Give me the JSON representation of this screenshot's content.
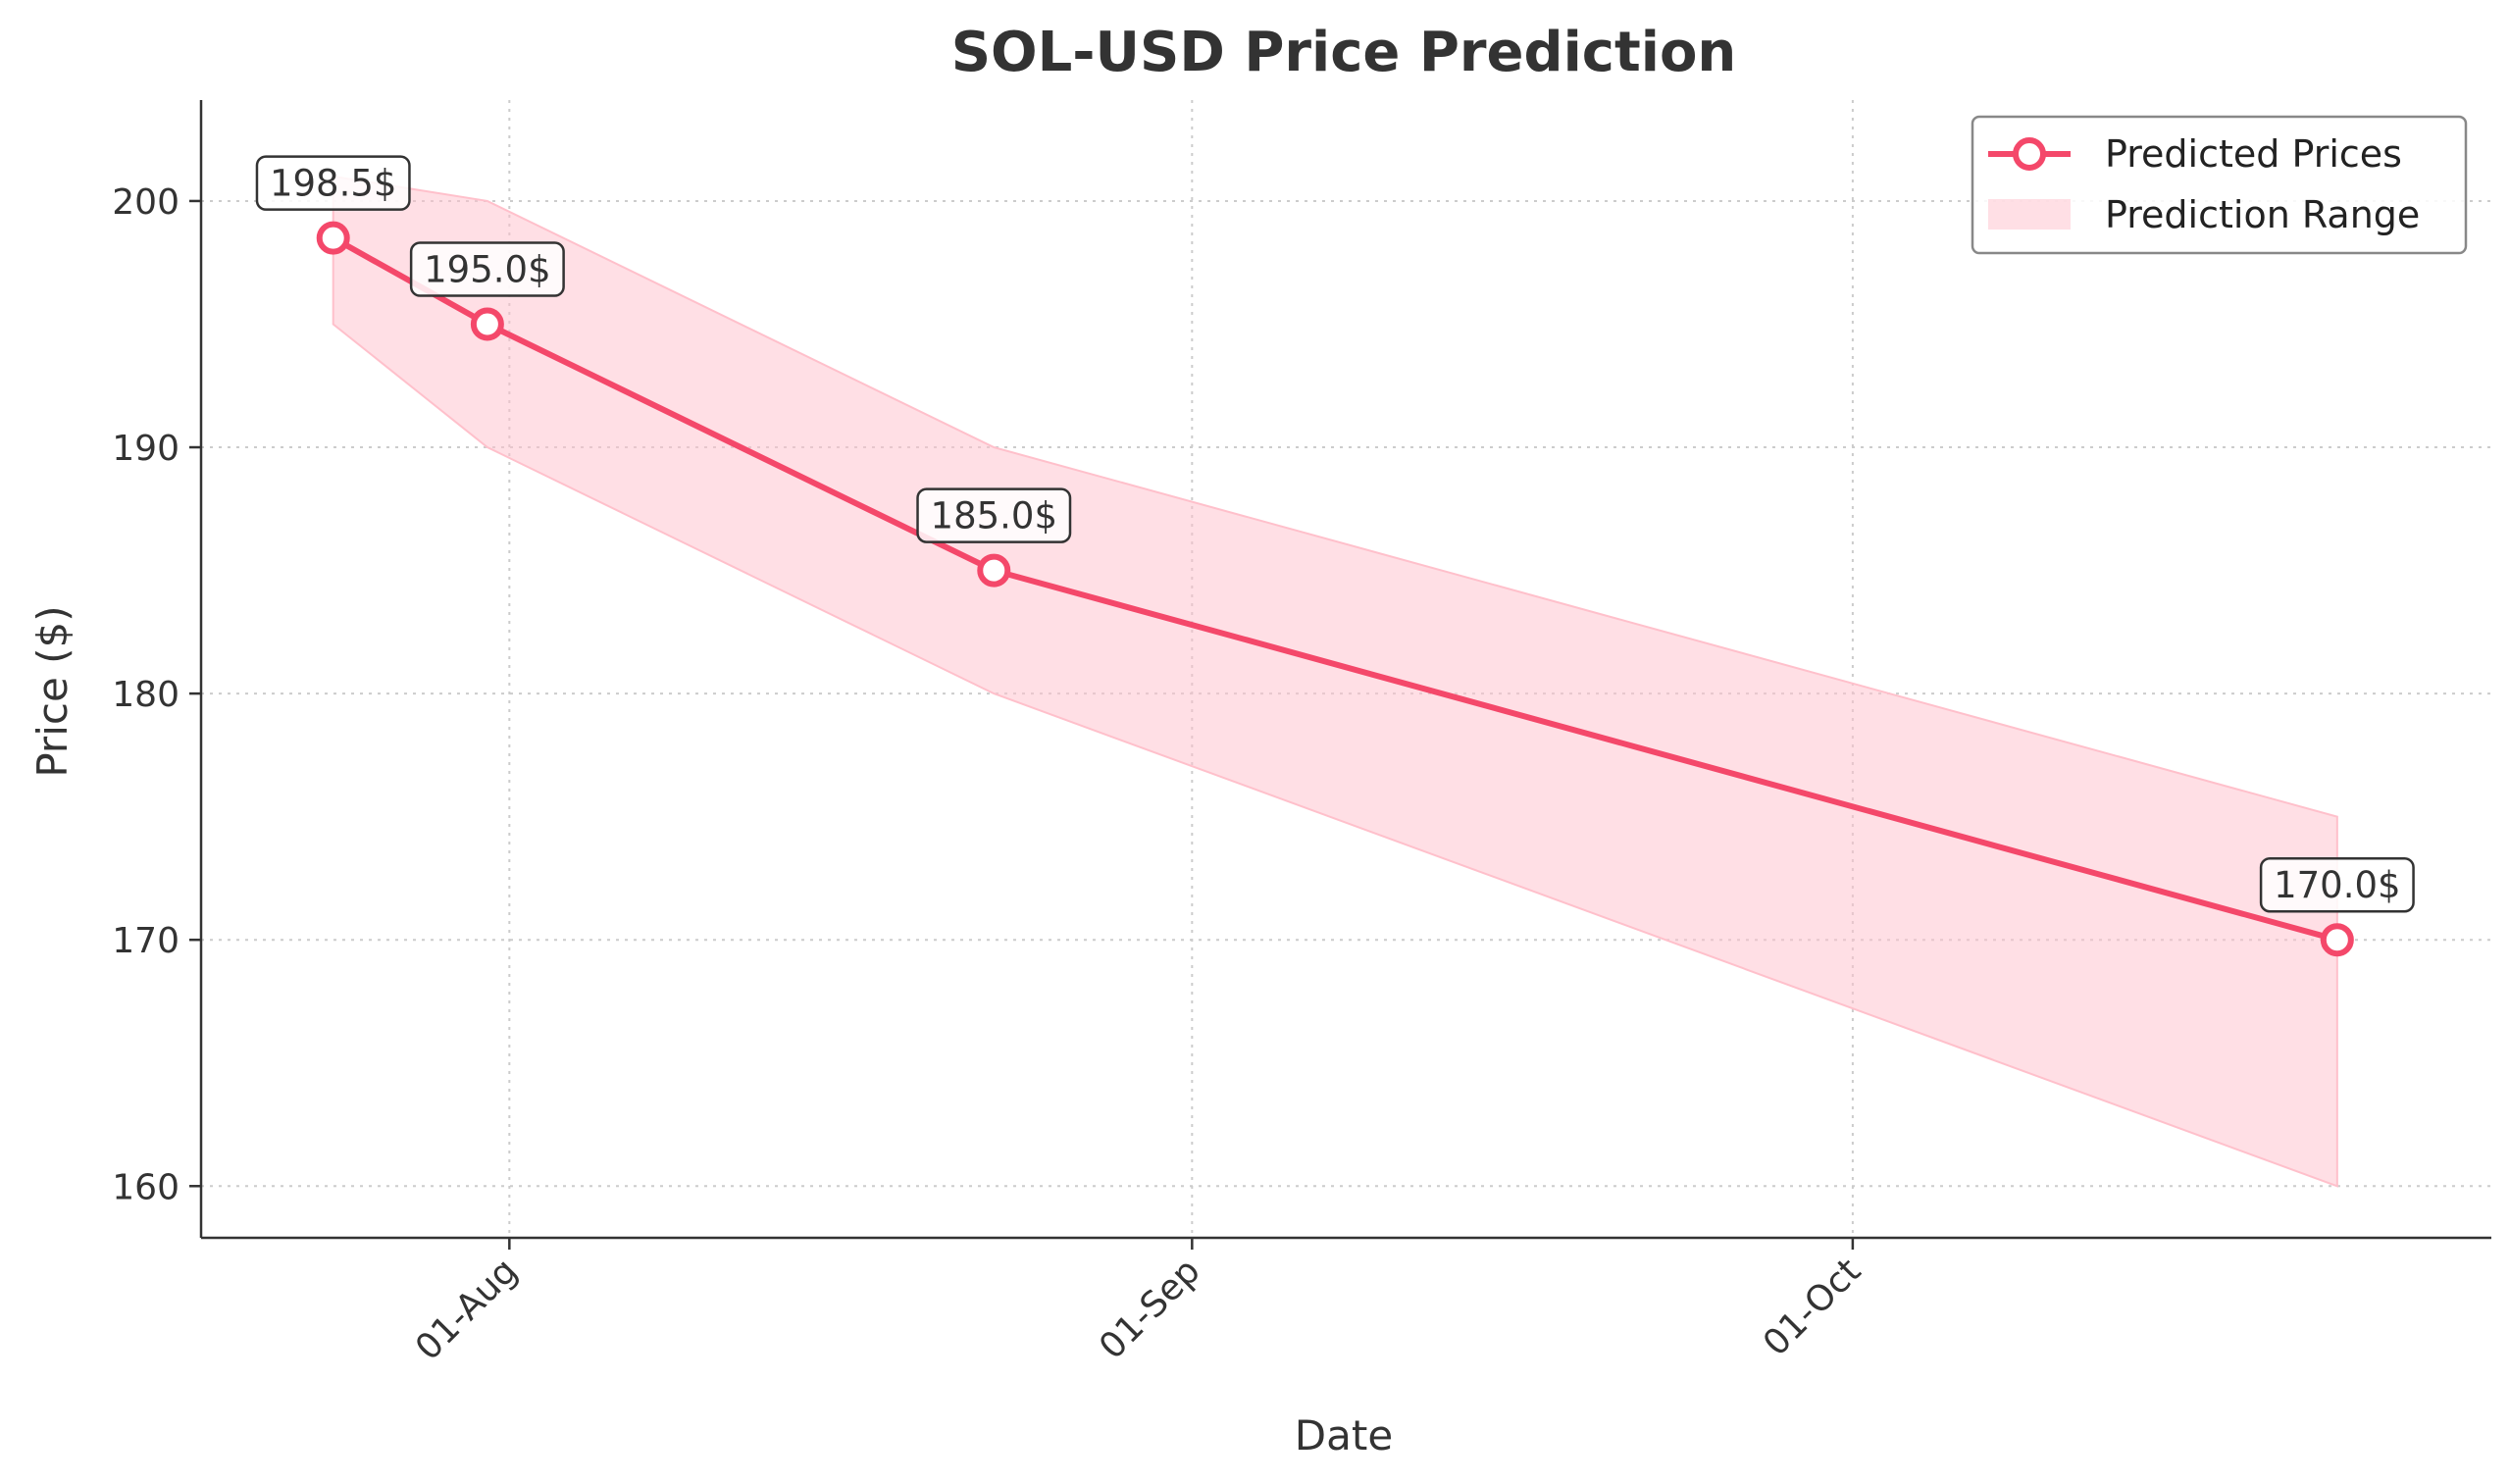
{
  "chart_data": {
    "type": "line",
    "title": "SOL-USD Price Prediction",
    "xlabel": "Date",
    "ylabel": "Price ($)",
    "x_tick_labels": [
      "01-Aug",
      "01-Sep",
      "01-Oct"
    ],
    "x_tick_dates": [
      "2025-08-01",
      "2025-09-01",
      "2025-10-01"
    ],
    "y_ticks": [
      160,
      170,
      180,
      190,
      200
    ],
    "ylim": [
      157.9,
      204.1
    ],
    "xlim": [
      "2025-07-18",
      "2025-10-30"
    ],
    "grid": true,
    "legend_position": "top-right",
    "series": [
      {
        "name": "Predicted Prices",
        "color": "#F4486A",
        "points": [
          {
            "date": "2025-07-24",
            "value": 198.5,
            "label": "198.5$"
          },
          {
            "date": "2025-07-31",
            "value": 195.0,
            "label": "195.0$"
          },
          {
            "date": "2025-08-23",
            "value": 185.0,
            "label": "185.0$"
          },
          {
            "date": "2025-10-23",
            "value": 170.0,
            "label": "170.0$"
          }
        ]
      }
    ],
    "range": {
      "name": "Prediction Range",
      "color": "#FFC0CB",
      "points": [
        {
          "date": "2025-07-24",
          "low": 195.0,
          "high": 201.0
        },
        {
          "date": "2025-07-31",
          "low": 190.0,
          "high": 200.0
        },
        {
          "date": "2025-08-23",
          "low": 180.0,
          "high": 190.0
        },
        {
          "date": "2025-10-23",
          "low": 160.0,
          "high": 175.0
        }
      ]
    }
  }
}
